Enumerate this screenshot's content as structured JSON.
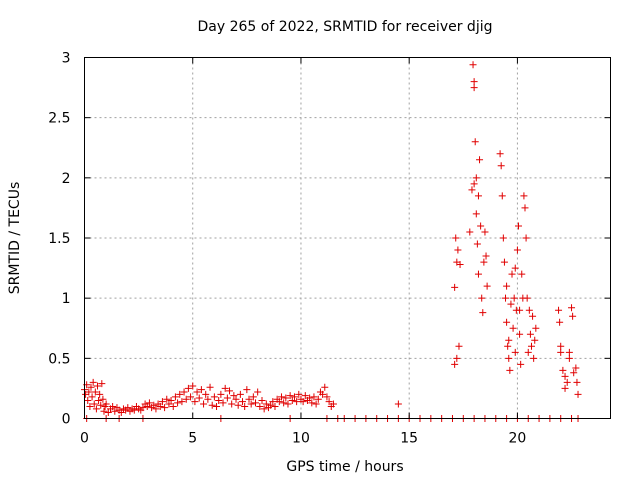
{
  "chart_data": {
    "type": "scatter",
    "title": "Day 265 of 2022, SRMTID for receiver djig",
    "xlabel": "GPS time / hours",
    "ylabel": "SRMTID / TECUs",
    "xlim": [
      0,
      24.3
    ],
    "ylim": [
      0,
      3
    ],
    "xticks": [
      0,
      5,
      10,
      15,
      20
    ],
    "xtick_labels": [
      "0",
      "5",
      "10",
      "15",
      "20"
    ],
    "yticks": [
      0,
      0.5,
      1,
      1.5,
      2,
      2.5,
      3
    ],
    "ytick_labels": [
      "0",
      "0.5",
      "1",
      "1.5",
      "2",
      "2.5",
      "3"
    ],
    "grid": true,
    "marker": "+",
    "color": "#e00000",
    "series": [
      {
        "name": "SRMTID",
        "points": [
          [
            0.0,
            0.24
          ],
          [
            0.05,
            0.2
          ],
          [
            0.1,
            0.28
          ],
          [
            0.15,
            0.15
          ],
          [
            0.2,
            0.22
          ],
          [
            0.25,
            0.1
          ],
          [
            0.3,
            0.26
          ],
          [
            0.35,
            0.18
          ],
          [
            0.4,
            0.3
          ],
          [
            0.45,
            0.12
          ],
          [
            0.5,
            0.22
          ],
          [
            0.55,
            0.08
          ],
          [
            0.6,
            0.27
          ],
          [
            0.65,
            0.15
          ],
          [
            0.7,
            0.2
          ],
          [
            0.75,
            0.11
          ],
          [
            0.8,
            0.29
          ],
          [
            0.85,
            0.16
          ],
          [
            0.9,
            0.06
          ],
          [
            0.95,
            0.1
          ],
          [
            1.0,
            0.12
          ],
          [
            1.1,
            0.05
          ],
          [
            1.2,
            0.08
          ],
          [
            1.3,
            0.1
          ],
          [
            1.4,
            0.06
          ],
          [
            1.5,
            0.09
          ],
          [
            1.6,
            0.07
          ],
          [
            1.7,
            0.05
          ],
          [
            1.8,
            0.08
          ],
          [
            1.9,
            0.07
          ],
          [
            2.0,
            0.09
          ],
          [
            2.1,
            0.06
          ],
          [
            2.2,
            0.08
          ],
          [
            2.3,
            0.07
          ],
          [
            2.4,
            0.1
          ],
          [
            2.5,
            0.08
          ],
          [
            2.6,
            0.07
          ],
          [
            2.7,
            0.09
          ],
          [
            2.8,
            0.12
          ],
          [
            2.9,
            0.1
          ],
          [
            3.0,
            0.13
          ],
          [
            3.1,
            0.09
          ],
          [
            3.2,
            0.11
          ],
          [
            3.3,
            0.08
          ],
          [
            3.4,
            0.12
          ],
          [
            3.5,
            0.1
          ],
          [
            3.6,
            0.14
          ],
          [
            3.7,
            0.09
          ],
          [
            3.8,
            0.16
          ],
          [
            3.9,
            0.12
          ],
          [
            4.0,
            0.15
          ],
          [
            4.1,
            0.1
          ],
          [
            4.2,
            0.18
          ],
          [
            4.3,
            0.13
          ],
          [
            4.4,
            0.2
          ],
          [
            4.5,
            0.14
          ],
          [
            4.6,
            0.22
          ],
          [
            4.7,
            0.16
          ],
          [
            4.8,
            0.25
          ],
          [
            4.9,
            0.18
          ],
          [
            5.0,
            0.27
          ],
          [
            5.1,
            0.14
          ],
          [
            5.2,
            0.22
          ],
          [
            5.3,
            0.17
          ],
          [
            5.4,
            0.24
          ],
          [
            5.5,
            0.12
          ],
          [
            5.6,
            0.2
          ],
          [
            5.7,
            0.16
          ],
          [
            5.8,
            0.26
          ],
          [
            5.9,
            0.11
          ],
          [
            6.0,
            0.18
          ],
          [
            6.1,
            0.1
          ],
          [
            6.2,
            0.15
          ],
          [
            6.3,
            0.2
          ],
          [
            6.4,
            0.13
          ],
          [
            6.5,
            0.25
          ],
          [
            6.6,
            0.17
          ],
          [
            6.7,
            0.23
          ],
          [
            6.8,
            0.12
          ],
          [
            6.9,
            0.19
          ],
          [
            7.0,
            0.16
          ],
          [
            7.1,
            0.11
          ],
          [
            7.2,
            0.2
          ],
          [
            7.3,
            0.14
          ],
          [
            7.4,
            0.1
          ],
          [
            7.5,
            0.24
          ],
          [
            7.6,
            0.16
          ],
          [
            7.7,
            0.12
          ],
          [
            7.8,
            0.18
          ],
          [
            7.9,
            0.13
          ],
          [
            8.0,
            0.22
          ],
          [
            8.1,
            0.1
          ],
          [
            8.2,
            0.15
          ],
          [
            8.3,
            0.08
          ],
          [
            8.4,
            0.12
          ],
          [
            8.5,
            0.09
          ],
          [
            8.6,
            0.11
          ],
          [
            8.7,
            0.14
          ],
          [
            8.8,
            0.1
          ],
          [
            8.9,
            0.16
          ],
          [
            9.0,
            0.14
          ],
          [
            9.1,
            0.18
          ],
          [
            9.2,
            0.13
          ],
          [
            9.3,
            0.17
          ],
          [
            9.4,
            0.12
          ],
          [
            9.5,
            0.19
          ],
          [
            9.6,
            0.15
          ],
          [
            9.7,
            0.18
          ],
          [
            9.8,
            0.14
          ],
          [
            9.9,
            0.2
          ],
          [
            10.0,
            0.16
          ],
          [
            10.1,
            0.14
          ],
          [
            10.2,
            0.19
          ],
          [
            10.3,
            0.15
          ],
          [
            10.4,
            0.17
          ],
          [
            10.5,
            0.13
          ],
          [
            10.6,
            0.18
          ],
          [
            10.7,
            0.12
          ],
          [
            10.8,
            0.16
          ],
          [
            10.9,
            0.22
          ],
          [
            11.0,
            0.2
          ],
          [
            11.1,
            0.26
          ],
          [
            11.2,
            0.18
          ],
          [
            11.3,
            0.14
          ],
          [
            11.4,
            0.1
          ],
          [
            11.5,
            0.12
          ],
          [
            0.1,
            0.0
          ],
          [
            1.0,
            0.0
          ],
          [
            1.6,
            0.0
          ],
          [
            2.7,
            0.0
          ],
          [
            6.3,
            0.0
          ],
          [
            9.5,
            0.0
          ],
          [
            11.2,
            0.0
          ],
          [
            11.7,
            0.0
          ],
          [
            12.0,
            0.0
          ],
          [
            12.5,
            0.0
          ],
          [
            13.0,
            0.0
          ],
          [
            13.5,
            0.0
          ],
          [
            14.0,
            0.0
          ],
          [
            14.5,
            0.0
          ],
          [
            15.0,
            0.0
          ],
          [
            15.5,
            0.0
          ],
          [
            16.0,
            0.0
          ],
          [
            16.5,
            0.0
          ],
          [
            17.0,
            0.0
          ],
          [
            17.5,
            0.0
          ],
          [
            18.0,
            0.0
          ],
          [
            18.5,
            0.0
          ],
          [
            19.0,
            0.0
          ],
          [
            19.5,
            0.0
          ],
          [
            20.0,
            0.0
          ],
          [
            20.5,
            0.0
          ],
          [
            21.0,
            0.0
          ],
          [
            21.5,
            0.0
          ],
          [
            22.0,
            0.0
          ],
          [
            22.5,
            0.0
          ],
          [
            22.8,
            0.0
          ],
          [
            14.5,
            0.12
          ],
          [
            17.1,
            1.09
          ],
          [
            17.15,
            1.5
          ],
          [
            17.2,
            1.3
          ],
          [
            17.25,
            1.4
          ],
          [
            17.3,
            0.6
          ],
          [
            17.1,
            0.45
          ],
          [
            17.2,
            0.5
          ],
          [
            17.35,
            1.28
          ],
          [
            17.8,
            1.55
          ],
          [
            17.9,
            1.9
          ],
          [
            17.95,
            2.94
          ],
          [
            18.0,
            2.75
          ],
          [
            18.0,
            2.8
          ],
          [
            18.05,
            2.3
          ],
          [
            18.1,
            1.7
          ],
          [
            18.15,
            1.45
          ],
          [
            18.2,
            1.2
          ],
          [
            18.25,
            2.15
          ],
          [
            18.3,
            1.6
          ],
          [
            18.35,
            1.0
          ],
          [
            18.4,
            0.88
          ],
          [
            18.45,
            1.3
          ],
          [
            18.5,
            1.55
          ],
          [
            18.55,
            1.35
          ],
          [
            18.6,
            1.1
          ],
          [
            18.0,
            1.95
          ],
          [
            18.1,
            2.0
          ],
          [
            18.2,
            1.85
          ],
          [
            19.2,
            2.2
          ],
          [
            19.25,
            2.1
          ],
          [
            19.3,
            1.85
          ],
          [
            19.35,
            1.5
          ],
          [
            19.4,
            1.3
          ],
          [
            19.45,
            1.0
          ],
          [
            19.5,
            0.8
          ],
          [
            19.55,
            0.6
          ],
          [
            19.6,
            0.5
          ],
          [
            19.65,
            0.4
          ],
          [
            19.7,
            0.95
          ],
          [
            19.75,
            1.2
          ],
          [
            19.8,
            0.75
          ],
          [
            19.85,
            1.0
          ],
          [
            19.9,
            1.25
          ],
          [
            19.95,
            0.9
          ],
          [
            20.0,
            1.4
          ],
          [
            20.05,
            1.6
          ],
          [
            20.1,
            0.7
          ],
          [
            20.15,
            0.45
          ],
          [
            20.2,
            1.2
          ],
          [
            20.25,
            1.0
          ],
          [
            20.3,
            1.85
          ],
          [
            20.35,
            1.75
          ],
          [
            20.4,
            1.5
          ],
          [
            20.45,
            1.0
          ],
          [
            20.5,
            0.55
          ],
          [
            20.55,
            0.9
          ],
          [
            20.6,
            0.7
          ],
          [
            20.65,
            0.6
          ],
          [
            20.7,
            0.85
          ],
          [
            20.75,
            0.5
          ],
          [
            20.8,
            0.65
          ],
          [
            20.85,
            0.75
          ],
          [
            20.1,
            0.9
          ],
          [
            19.9,
            0.55
          ],
          [
            19.6,
            0.65
          ],
          [
            19.5,
            1.1
          ],
          [
            21.9,
            0.9
          ],
          [
            21.95,
            0.8
          ],
          [
            22.0,
            0.55
          ],
          [
            22.1,
            0.4
          ],
          [
            22.2,
            0.35
          ],
          [
            22.3,
            0.3
          ],
          [
            22.4,
            0.55
          ],
          [
            22.5,
            0.92
          ],
          [
            22.55,
            0.85
          ],
          [
            22.6,
            0.38
          ],
          [
            22.7,
            0.42
          ],
          [
            22.75,
            0.3
          ],
          [
            22.8,
            0.2
          ],
          [
            22.2,
            0.25
          ],
          [
            22.0,
            0.6
          ],
          [
            22.4,
            0.5
          ]
        ]
      }
    ]
  }
}
